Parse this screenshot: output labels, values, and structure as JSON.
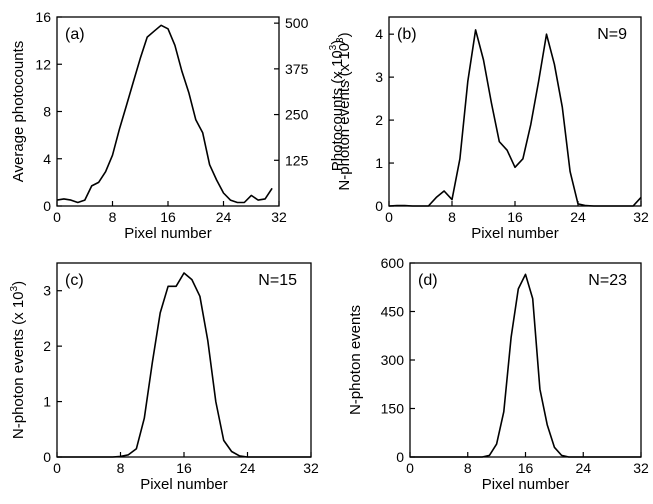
{
  "chart_data": [
    {
      "type": "line",
      "panel_label": "(a)",
      "annotation": "",
      "xlabel": "Pixel number",
      "ylabel": "Average photocounts",
      "ylabel_right": "Photocounts (x 10",
      "ylabel_right_exp": "3",
      "ylabel_right_close": ")",
      "xlim": [
        0,
        32
      ],
      "ylim": [
        0,
        16
      ],
      "xticks": [
        0,
        8,
        16,
        24,
        32
      ],
      "yticks": [
        0,
        4,
        8,
        12,
        16
      ],
      "yticks_right": [
        125,
        250,
        375,
        500
      ],
      "yticks_right_pos": [
        3.87,
        7.74,
        11.61,
        15.48
      ],
      "x": [
        0,
        1,
        2,
        3,
        4,
        5,
        6,
        7,
        8,
        9,
        10,
        11,
        12,
        13,
        14,
        15,
        16,
        17,
        18,
        19,
        20,
        21,
        22,
        23,
        24,
        25,
        26,
        27,
        28,
        29,
        30,
        31
      ],
      "values": [
        0.5,
        0.6,
        0.5,
        0.3,
        0.5,
        1.7,
        2.0,
        2.9,
        4.3,
        6.5,
        8.5,
        10.5,
        12.5,
        14.3,
        14.8,
        15.3,
        15.0,
        13.6,
        11.4,
        9.6,
        7.3,
        6.2,
        3.5,
        2.2,
        1.1,
        0.5,
        0.3,
        0.3,
        0.9,
        0.5,
        0.6,
        1.5
      ]
    },
    {
      "type": "line",
      "panel_label": "(b)",
      "annotation": "N=9",
      "xlabel": "Pixel number",
      "ylabel": "N-photon events (x 10",
      "ylabel_exp": "3",
      "ylabel_close": ")",
      "xlim": [
        0,
        32
      ],
      "ylim": [
        0,
        4.4
      ],
      "xticks": [
        0,
        8,
        16,
        24,
        32
      ],
      "yticks": [
        0,
        1,
        2,
        3,
        4
      ],
      "x": [
        0,
        1,
        2,
        3,
        4,
        5,
        6,
        7,
        8,
        9,
        10,
        11,
        12,
        13,
        14,
        15,
        16,
        17,
        18,
        19,
        20,
        21,
        22,
        23,
        24,
        25,
        26,
        27,
        28,
        29,
        30,
        31,
        32
      ],
      "values": [
        0.0,
        0.01,
        0.01,
        0.0,
        0.0,
        0.0,
        0.2,
        0.35,
        0.15,
        1.1,
        2.9,
        4.1,
        3.4,
        2.4,
        1.5,
        1.3,
        0.9,
        1.1,
        1.9,
        2.9,
        4.0,
        3.3,
        2.3,
        0.8,
        0.05,
        0.01,
        0.0,
        0.0,
        0.0,
        0.0,
        0.0,
        0.0,
        0.2
      ]
    },
    {
      "type": "line",
      "panel_label": "(c)",
      "annotation": "N=15",
      "xlabel": "Pixel number",
      "ylabel": "N-photon events (x 10",
      "ylabel_exp": "3",
      "ylabel_close": ")",
      "xlim": [
        0,
        32
      ],
      "ylim": [
        0,
        3.5
      ],
      "xticks": [
        0,
        8,
        16,
        24,
        32
      ],
      "yticks": [
        0,
        1,
        2,
        3
      ],
      "x": [
        0,
        1,
        2,
        3,
        4,
        5,
        6,
        7,
        8,
        9,
        10,
        11,
        12,
        13,
        14,
        15,
        16,
        17,
        18,
        19,
        20,
        21,
        22,
        23,
        24,
        25,
        26,
        27,
        28,
        29,
        30,
        31,
        32
      ],
      "values": [
        0,
        0,
        0,
        0,
        0,
        0,
        0,
        0,
        0.01,
        0.04,
        0.15,
        0.7,
        1.7,
        2.6,
        3.08,
        3.08,
        3.32,
        3.2,
        2.9,
        2.1,
        1.0,
        0.3,
        0.1,
        0.02,
        0,
        0,
        0,
        0,
        0,
        0,
        0,
        0,
        0
      ]
    },
    {
      "type": "line",
      "panel_label": "(d)",
      "annotation": "N=23",
      "xlabel": "Pixel number",
      "ylabel": "N-photon events",
      "xlim": [
        0,
        32
      ],
      "ylim": [
        0,
        600
      ],
      "xticks": [
        0,
        8,
        16,
        24,
        32
      ],
      "yticks": [
        0,
        150,
        300,
        450,
        600
      ],
      "x": [
        0,
        1,
        2,
        3,
        4,
        5,
        6,
        7,
        8,
        9,
        10,
        11,
        12,
        13,
        14,
        15,
        16,
        17,
        18,
        19,
        20,
        21,
        22,
        23,
        24,
        25,
        26,
        27,
        28,
        29,
        30,
        31,
        32
      ],
      "values": [
        0,
        0,
        0,
        0,
        0,
        0,
        0,
        0,
        0,
        0,
        0,
        5,
        40,
        140,
        370,
        520,
        565,
        490,
        210,
        100,
        30,
        5,
        0,
        0,
        0,
        0,
        0,
        0,
        0,
        0,
        0,
        0,
        0
      ]
    }
  ]
}
